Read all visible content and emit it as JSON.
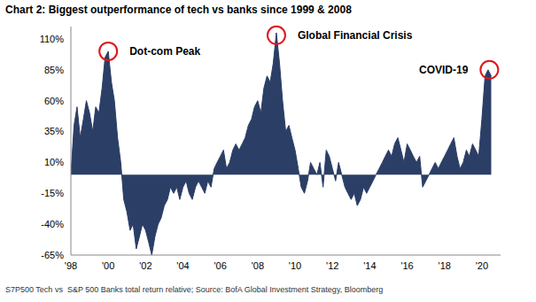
{
  "chart_data": {
    "type": "area",
    "title": "Chart 2: Biggest outperformance of tech vs banks since 1999 & 2008",
    "footnote": "S7P500 Tech vs  S&P 500 Banks total return relative; Source: BofA Global Investment Strategy, Bloomberg",
    "color": "#2b3e66",
    "x": [
      1998,
      1998.17,
      1998.33,
      1998.5,
      1998.67,
      1998.83,
      1999,
      1999.17,
      1999.33,
      1999.5,
      1999.67,
      1999.83,
      2000,
      2000.17,
      2000.33,
      2000.5,
      2000.67,
      2000.83,
      2001,
      2001.17,
      2001.33,
      2001.5,
      2001.67,
      2001.83,
      2002,
      2002.17,
      2002.33,
      2002.5,
      2002.67,
      2002.83,
      2003,
      2003.17,
      2003.33,
      2003.5,
      2003.67,
      2003.83,
      2004,
      2004.17,
      2004.33,
      2004.5,
      2004.67,
      2004.83,
      2005,
      2005.17,
      2005.33,
      2005.5,
      2005.67,
      2005.83,
      2006,
      2006.17,
      2006.33,
      2006.5,
      2006.67,
      2006.83,
      2007,
      2007.17,
      2007.33,
      2007.5,
      2007.67,
      2007.83,
      2008,
      2008.17,
      2008.33,
      2008.5,
      2008.67,
      2008.83,
      2009,
      2009.17,
      2009.33,
      2009.5,
      2009.67,
      2009.83,
      2010,
      2010.17,
      2010.33,
      2010.5,
      2010.67,
      2010.83,
      2011,
      2011.17,
      2011.33,
      2011.5,
      2011.67,
      2011.83,
      2012,
      2012.17,
      2012.33,
      2012.5,
      2012.67,
      2012.83,
      2013,
      2013.17,
      2013.33,
      2013.5,
      2013.67,
      2013.83,
      2014,
      2014.17,
      2014.33,
      2014.5,
      2014.67,
      2014.83,
      2015,
      2015.17,
      2015.33,
      2015.5,
      2015.67,
      2015.83,
      2016,
      2016.17,
      2016.33,
      2016.5,
      2016.67,
      2016.83,
      2017,
      2017.17,
      2017.33,
      2017.5,
      2017.67,
      2017.83,
      2018,
      2018.17,
      2018.33,
      2018.5,
      2018.67,
      2018.83,
      2019,
      2019.17,
      2019.33,
      2019.5,
      2019.67,
      2019.83,
      2020,
      2020.17,
      2020.33,
      2020.5
    ],
    "values": [
      0,
      40,
      55,
      30,
      45,
      60,
      50,
      35,
      55,
      50,
      70,
      95,
      100,
      75,
      60,
      30,
      10,
      -20,
      -30,
      -45,
      -40,
      -60,
      -50,
      -40,
      -45,
      -55,
      -65,
      -50,
      -40,
      -35,
      -25,
      -20,
      -10,
      -15,
      -10,
      -20,
      -10,
      -5,
      -15,
      -20,
      -10,
      -5,
      -10,
      -15,
      -5,
      -10,
      5,
      10,
      15,
      20,
      5,
      10,
      20,
      25,
      20,
      25,
      30,
      40,
      45,
      55,
      60,
      50,
      70,
      80,
      75,
      90,
      115,
      90,
      60,
      35,
      40,
      30,
      20,
      5,
      -10,
      -15,
      -5,
      10,
      5,
      0,
      10,
      -10,
      20,
      15,
      5,
      -5,
      10,
      0,
      -10,
      -15,
      -20,
      -15,
      -25,
      -20,
      -10,
      -15,
      -10,
      -5,
      0,
      5,
      10,
      15,
      20,
      15,
      25,
      30,
      20,
      10,
      25,
      20,
      15,
      10,
      15,
      -10,
      -5,
      0,
      5,
      10,
      5,
      10,
      15,
      20,
      25,
      30,
      15,
      5,
      10,
      20,
      15,
      25,
      20,
      15,
      45,
      80,
      85,
      80
    ],
    "xlim": [
      1998,
      2021
    ],
    "xticks": [
      {
        "value": 1998,
        "label": "'98"
      },
      {
        "value": 2000,
        "label": "'00"
      },
      {
        "value": 2002,
        "label": "'02"
      },
      {
        "value": 2004,
        "label": "'04"
      },
      {
        "value": 2006,
        "label": "'06"
      },
      {
        "value": 2008,
        "label": "'08"
      },
      {
        "value": 2010,
        "label": "'10"
      },
      {
        "value": 2012,
        "label": "'12"
      },
      {
        "value": 2014,
        "label": "'14"
      },
      {
        "value": 2016,
        "label": "'16"
      },
      {
        "value": 2018,
        "label": "'18"
      },
      {
        "value": 2020,
        "label": "'20"
      }
    ],
    "ylim": [
      -65,
      120
    ],
    "yticks": [
      {
        "value": -65,
        "label": "-65%"
      },
      {
        "value": -40,
        "label": "-40%"
      },
      {
        "value": -15,
        "label": "-15%"
      },
      {
        "value": 10,
        "label": "10%"
      },
      {
        "value": 35,
        "label": "35%"
      },
      {
        "value": 60,
        "label": "60%"
      },
      {
        "value": 85,
        "label": "85%"
      },
      {
        "value": 110,
        "label": "110%"
      }
    ],
    "grid": false,
    "annotations": [
      {
        "text": "Dot-com Peak",
        "x": 2000,
        "y": 100,
        "color": "#e0161a"
      },
      {
        "text": "Global Financial Crisis",
        "x": 2009,
        "y": 113,
        "color": "#e0161a"
      },
      {
        "text": "COVID-19",
        "x": 2020.4,
        "y": 85,
        "color": "#e0161a"
      }
    ]
  }
}
